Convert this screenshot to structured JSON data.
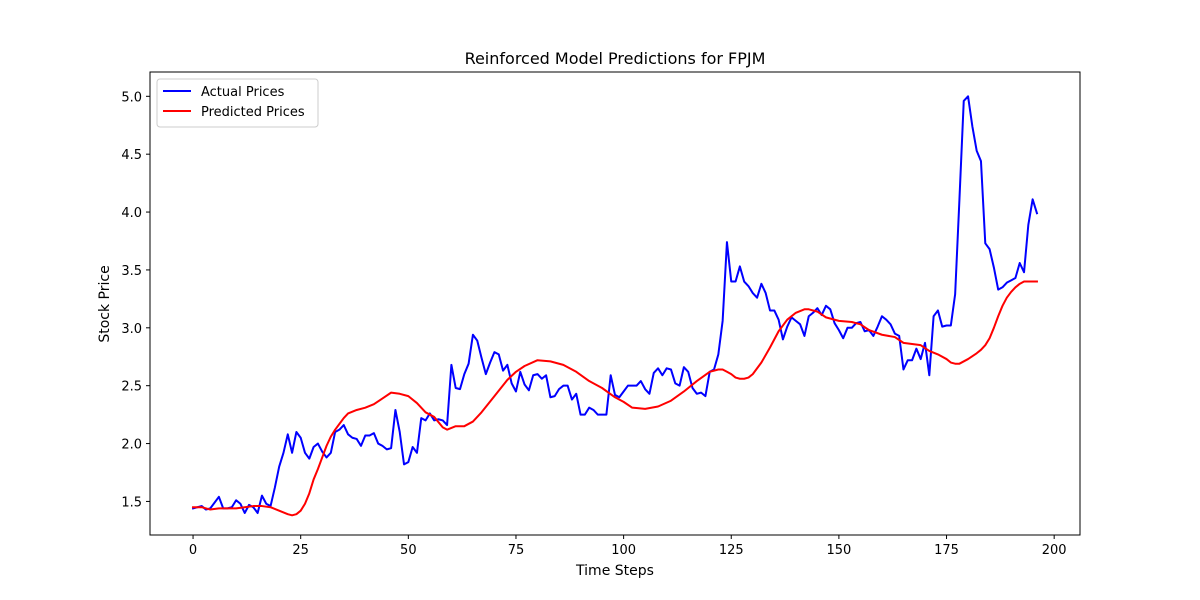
{
  "chart_data": {
    "type": "line",
    "title": "Reinforced Model Predictions for FPJM",
    "xlabel": "Time Steps",
    "ylabel": "Stock Price",
    "xlim": [
      -10,
      206
    ],
    "ylim": [
      1.21,
      5.21
    ],
    "xticks": [
      0,
      25,
      50,
      75,
      100,
      125,
      150,
      175,
      200
    ],
    "yticks": [
      1.5,
      2.0,
      2.5,
      3.0,
      3.5,
      4.0,
      4.5,
      5.0
    ],
    "xtick_labels": [
      "0",
      "25",
      "50",
      "75",
      "100",
      "125",
      "150",
      "175",
      "200"
    ],
    "ytick_labels": [
      "1.5",
      "2.0",
      "2.5",
      "3.0",
      "3.5",
      "4.0",
      "4.5",
      "5.0"
    ],
    "grid": false,
    "legend_position": "upper-left",
    "series": [
      {
        "name": "Actual Prices",
        "color": "#0000ff",
        "x": [
          0,
          2,
          3,
          4,
          6,
          7,
          8,
          9,
          10,
          11,
          12,
          13,
          14,
          15,
          16,
          17,
          18,
          19,
          20,
          21,
          22,
          23,
          24,
          25,
          26,
          27,
          28,
          29,
          30,
          31,
          32,
          33,
          34,
          35,
          36,
          37,
          38,
          39,
          40,
          41,
          42,
          43,
          44,
          45,
          46,
          47,
          48,
          49,
          50,
          51,
          52,
          53,
          54,
          55,
          56,
          57,
          58,
          59,
          60,
          61,
          62,
          63,
          64,
          65,
          66,
          67,
          68,
          69,
          70,
          71,
          72,
          73,
          74,
          75,
          76,
          77,
          78,
          79,
          80,
          81,
          82,
          83,
          84,
          85,
          86,
          87,
          88,
          89,
          90,
          91,
          92,
          93,
          94,
          95,
          96,
          97,
          98,
          99,
          100,
          101,
          102,
          103,
          104,
          105,
          106,
          107,
          108,
          109,
          110,
          111,
          112,
          113,
          114,
          115,
          116,
          117,
          118,
          119,
          120,
          121,
          122,
          123,
          124,
          125,
          126,
          127,
          128,
          129,
          130,
          131,
          132,
          133,
          134,
          135,
          136,
          137,
          138,
          139,
          140,
          141,
          142,
          143,
          144,
          145,
          146,
          147,
          148,
          149,
          150,
          151,
          152,
          153,
          154,
          155,
          156,
          157,
          158,
          159,
          160,
          161,
          162,
          163,
          164,
          165,
          166,
          167,
          168,
          169,
          170,
          171,
          172,
          173,
          174,
          175,
          176,
          177,
          178,
          179,
          180,
          181,
          182,
          183,
          184,
          185,
          186,
          187,
          188,
          189,
          190,
          191,
          192,
          193,
          194,
          195,
          196
        ],
        "values": [
          1.44,
          1.46,
          1.43,
          1.44,
          1.54,
          1.44,
          1.44,
          1.45,
          1.51,
          1.48,
          1.4,
          1.47,
          1.45,
          1.4,
          1.55,
          1.48,
          1.46,
          1.62,
          1.8,
          1.92,
          2.08,
          1.92,
          2.1,
          2.05,
          1.92,
          1.87,
          1.97,
          2.0,
          1.93,
          1.88,
          1.92,
          2.1,
          2.12,
          2.16,
          2.08,
          2.05,
          2.04,
          1.98,
          2.07,
          2.07,
          2.09,
          2.0,
          1.98,
          1.95,
          1.96,
          2.29,
          2.1,
          1.82,
          1.84,
          1.97,
          1.92,
          2.22,
          2.2,
          2.26,
          2.2,
          2.21,
          2.2,
          2.16,
          2.68,
          2.48,
          2.47,
          2.6,
          2.69,
          2.94,
          2.89,
          2.74,
          2.6,
          2.7,
          2.79,
          2.77,
          2.63,
          2.68,
          2.52,
          2.45,
          2.62,
          2.51,
          2.46,
          2.59,
          2.6,
          2.56,
          2.59,
          2.4,
          2.41,
          2.47,
          2.5,
          2.5,
          2.38,
          2.43,
          2.25,
          2.25,
          2.31,
          2.29,
          2.25,
          2.25,
          2.25,
          2.59,
          2.42,
          2.4,
          2.45,
          2.5,
          2.5,
          2.5,
          2.54,
          2.47,
          2.43,
          2.61,
          2.65,
          2.59,
          2.65,
          2.64,
          2.52,
          2.5,
          2.66,
          2.62,
          2.48,
          2.43,
          2.44,
          2.41,
          2.62,
          2.64,
          2.77,
          3.06,
          3.74,
          3.4,
          3.4,
          3.53,
          3.4,
          3.36,
          3.3,
          3.26,
          3.38,
          3.3,
          3.15,
          3.15,
          3.07,
          2.9,
          3.01,
          3.09,
          3.06,
          3.03,
          2.93,
          3.1,
          3.13,
          3.17,
          3.11,
          3.19,
          3.16,
          3.04,
          2.98,
          2.91,
          3.0,
          3.0,
          3.04,
          3.05,
          2.97,
          2.98,
          2.93,
          3.01,
          3.1,
          3.07,
          3.03,
          2.95,
          2.93,
          2.64,
          2.72,
          2.72,
          2.82,
          2.73,
          2.87,
          2.59,
          3.1,
          3.15,
          3.01,
          3.02,
          3.02,
          3.29,
          4.11,
          4.96,
          5.0,
          4.74,
          4.53,
          4.44,
          3.73,
          3.68,
          3.52,
          3.33,
          3.35,
          3.39,
          3.41,
          3.43,
          3.56,
          3.48,
          3.89,
          4.11,
          3.99
        ]
      },
      {
        "name": "Predicted Prices",
        "color": "#ff0000",
        "x": [
          0,
          2,
          4,
          6,
          8,
          10,
          12,
          14,
          16,
          18,
          20,
          22,
          23,
          24,
          25,
          26,
          27,
          28,
          29,
          30,
          31,
          32,
          33,
          34,
          35,
          36,
          38,
          40,
          42,
          44,
          46,
          48,
          50,
          52,
          54,
          56,
          58,
          59,
          61,
          63,
          65,
          67,
          70,
          73,
          75,
          77,
          80,
          83,
          86,
          89,
          92,
          95,
          98,
          100,
          102,
          105,
          108,
          111,
          114,
          117,
          120,
          122,
          123,
          124,
          125,
          126,
          127,
          128,
          129,
          130,
          132,
          134,
          136,
          138,
          140,
          142,
          143,
          145,
          147,
          150,
          153,
          155,
          157,
          160,
          163,
          165,
          167,
          169,
          171,
          173,
          175,
          176,
          177,
          178,
          180,
          182,
          183,
          184,
          185,
          186,
          187,
          188,
          189,
          190,
          191,
          192,
          193,
          194,
          195,
          196
        ],
        "values": [
          1.45,
          1.45,
          1.43,
          1.44,
          1.44,
          1.44,
          1.45,
          1.46,
          1.46,
          1.45,
          1.42,
          1.39,
          1.38,
          1.39,
          1.42,
          1.48,
          1.57,
          1.69,
          1.78,
          1.88,
          1.98,
          2.06,
          2.12,
          2.17,
          2.22,
          2.26,
          2.29,
          2.31,
          2.34,
          2.39,
          2.44,
          2.43,
          2.41,
          2.35,
          2.27,
          2.23,
          2.14,
          2.12,
          2.15,
          2.15,
          2.19,
          2.27,
          2.41,
          2.55,
          2.62,
          2.67,
          2.72,
          2.71,
          2.68,
          2.62,
          2.54,
          2.48,
          2.4,
          2.36,
          2.31,
          2.3,
          2.32,
          2.37,
          2.45,
          2.54,
          2.62,
          2.64,
          2.64,
          2.62,
          2.6,
          2.57,
          2.56,
          2.56,
          2.57,
          2.6,
          2.7,
          2.83,
          2.97,
          3.07,
          3.13,
          3.16,
          3.16,
          3.14,
          3.09,
          3.06,
          3.05,
          3.03,
          2.98,
          2.94,
          2.92,
          2.87,
          2.86,
          2.85,
          2.8,
          2.77,
          2.73,
          2.7,
          2.69,
          2.69,
          2.73,
          2.78,
          2.81,
          2.85,
          2.91,
          3.0,
          3.1,
          3.19,
          3.26,
          3.31,
          3.35,
          3.38,
          3.4,
          3.4,
          3.4,
          3.4
        ]
      }
    ]
  }
}
